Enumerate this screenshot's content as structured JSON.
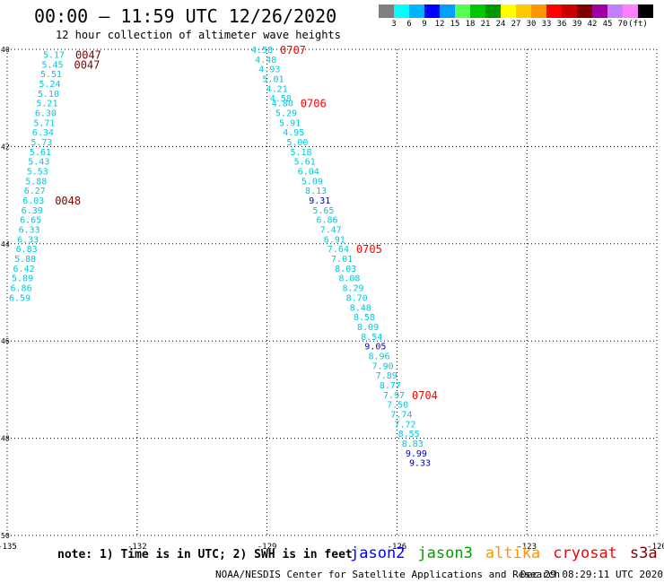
{
  "title": "00:00 – 11:59 UTC 12/26/2020",
  "subtitle": "12 hour collection of altimeter wave heights",
  "colorbar": {
    "colors": [
      "#808080",
      "#00ffff",
      "#00b4ff",
      "#0000ff",
      "#00a0ff",
      "#55ff55",
      "#00c800",
      "#009600",
      "#ffff00",
      "#ffc800",
      "#ff9600",
      "#ff0000",
      "#c80000",
      "#800000",
      "#a000a0",
      "#c080ff",
      "#ff80ff",
      "#000000"
    ],
    "labels": [
      "3",
      "6",
      "9",
      "12",
      "15",
      "18",
      "21",
      "24",
      "27",
      "30",
      "33",
      "36",
      "39",
      "42",
      "45",
      "70",
      "(ft)"
    ]
  },
  "axes": {
    "lon_ticks": [
      "-135",
      "-132",
      "-129",
      "-126",
      "-123",
      "-120"
    ],
    "lat_ticks": [
      "40",
      "42",
      "44",
      "46",
      "48",
      "50"
    ]
  },
  "tracks": [
    {
      "sat": "s3a",
      "points": [
        {
          "v": "5.17",
          "lat": 40.1
        },
        {
          "v": "5.45",
          "lat": 40.3
        },
        {
          "v": "5.51",
          "lat": 40.5
        },
        {
          "v": "5.24",
          "lat": 40.7
        },
        {
          "v": "5.10",
          "lat": 40.9
        },
        {
          "v": "5.21",
          "lat": 41.1
        },
        {
          "v": "6.30",
          "lat": 41.3
        },
        {
          "v": "5.71",
          "lat": 41.5
        },
        {
          "v": "6.34",
          "lat": 41.7
        },
        {
          "v": "5.73",
          "lat": 41.9
        },
        {
          "v": "5.61",
          "lat": 42.1
        },
        {
          "v": "5.43",
          "lat": 42.3
        },
        {
          "v": "5.53",
          "lat": 42.5
        },
        {
          "v": "5.88",
          "lat": 42.7
        },
        {
          "v": "6.27",
          "lat": 42.9
        },
        {
          "v": "6.03",
          "lat": 43.1
        },
        {
          "v": "6.39",
          "lat": 43.3
        },
        {
          "v": "6.65",
          "lat": 43.5
        },
        {
          "v": "6.33",
          "lat": 43.7
        },
        {
          "v": "6.33",
          "lat": 43.9
        },
        {
          "v": "6.83",
          "lat": 44.1
        },
        {
          "v": "5.88",
          "lat": 44.3
        },
        {
          "v": "6.42",
          "lat": 44.5
        },
        {
          "v": "5.89",
          "lat": 44.7
        },
        {
          "v": "6.86",
          "lat": 44.9
        },
        {
          "v": "6.59",
          "lat": 45.1
        }
      ],
      "times": [
        {
          "t": "0047",
          "lat": 40.1
        },
        {
          "t": "0047",
          "lat": 40.3
        },
        {
          "t": "0048",
          "lat": 43.1
        }
      ]
    },
    {
      "sat": "cryosat",
      "points": [
        {
          "v": "4.58",
          "lat": 40.0
        },
        {
          "v": "4.48",
          "lat": 40.2
        },
        {
          "v": "4.93",
          "lat": 40.4
        },
        {
          "v": "5.01",
          "lat": 40.6
        },
        {
          "v": "4.21",
          "lat": 40.8
        },
        {
          "v": "4.58",
          "lat": 41.0
        },
        {
          "v": "4.80",
          "lat": 41.1
        },
        {
          "v": "5.29",
          "lat": 41.3
        },
        {
          "v": "5.91",
          "lat": 41.5
        },
        {
          "v": "4.95",
          "lat": 41.7
        },
        {
          "v": "5.00",
          "lat": 41.9
        },
        {
          "v": "5.18",
          "lat": 42.1
        },
        {
          "v": "5.61",
          "lat": 42.3
        },
        {
          "v": "6.04",
          "lat": 42.5
        },
        {
          "v": "5.09",
          "lat": 42.7
        },
        {
          "v": "8.13",
          "lat": 42.9
        },
        {
          "v": "9.31",
          "lat": 43.1
        },
        {
          "v": "5.65",
          "lat": 43.3
        },
        {
          "v": "6.86",
          "lat": 43.5
        },
        {
          "v": "7.47",
          "lat": 43.7
        },
        {
          "v": "6.91",
          "lat": 43.9
        },
        {
          "v": "7.64",
          "lat": 44.1
        },
        {
          "v": "7.01",
          "lat": 44.3
        },
        {
          "v": "8.03",
          "lat": 44.5
        },
        {
          "v": "8.08",
          "lat": 44.7
        },
        {
          "v": "8.29",
          "lat": 44.9
        },
        {
          "v": "8.70",
          "lat": 45.1
        },
        {
          "v": "8.48",
          "lat": 45.3
        },
        {
          "v": "8.58",
          "lat": 45.5
        },
        {
          "v": "8.09",
          "lat": 45.7
        },
        {
          "v": "8.54",
          "lat": 45.9
        },
        {
          "v": "9.05",
          "lat": 46.1
        },
        {
          "v": "8.96",
          "lat": 46.3
        },
        {
          "v": "7.90",
          "lat": 46.5
        },
        {
          "v": "7.89",
          "lat": 46.7
        },
        {
          "v": "8.77",
          "lat": 46.9
        },
        {
          "v": "7.97",
          "lat": 47.1
        },
        {
          "v": "7.50",
          "lat": 47.3
        },
        {
          "v": "7.74",
          "lat": 47.5
        },
        {
          "v": "7.72",
          "lat": 47.7
        },
        {
          "v": "8.55",
          "lat": 47.9
        },
        {
          "v": "8.83",
          "lat": 48.1
        },
        {
          "v": "9.99",
          "lat": 48.3
        },
        {
          "v": "9.33",
          "lat": 48.5
        }
      ],
      "times": [
        {
          "t": "0707",
          "lat": 40.0
        },
        {
          "t": "0706",
          "lat": 41.1
        },
        {
          "t": "0705",
          "lat": 44.1
        },
        {
          "t": "0704",
          "lat": 47.1
        }
      ]
    }
  ],
  "note": "note: 1) Time is in UTC; 2) SWH is in feet",
  "legend": [
    {
      "name": "jason2",
      "color": "#0000ff"
    },
    {
      "name": "jason3",
      "color": "#00a000"
    },
    {
      "name": "altika",
      "color": "#ff9600"
    },
    {
      "name": "cryosat",
      "color": "#ff0000"
    },
    {
      "name": "s3a",
      "color": "#800000"
    }
  ],
  "credit": "NOAA/NESDIS Center for Satellite Applications and Research",
  "timestamp": "Dec 29 08:29:11 UTC 2020"
}
